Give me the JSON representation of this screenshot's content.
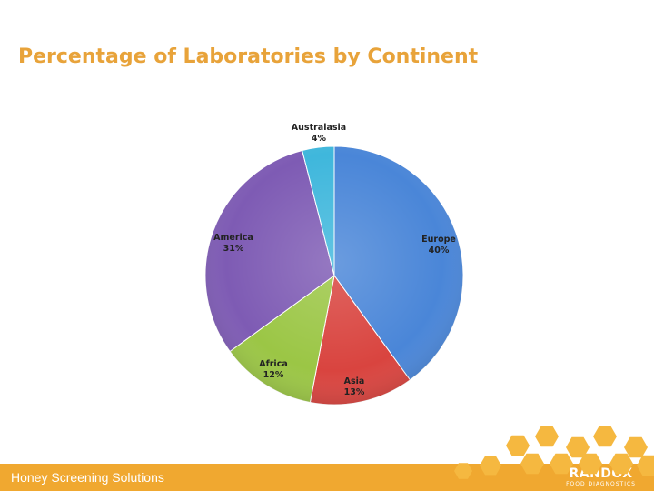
{
  "title": "Percentage of Laboratories by Continent",
  "colors": {
    "title": "#E8A33A",
    "footer": "#F0A830",
    "hex": "#F5B840"
  },
  "footer": {
    "text": "Honey Screening Solutions",
    "logo_main": "RANDOX",
    "logo_sub": "FOOD DIAGNOSTICS"
  },
  "chart_data": {
    "type": "pie",
    "title": "Percentage of Laboratories by Continent",
    "start_angle_deg": 0,
    "direction": "clockwise",
    "slices": [
      {
        "label": "Europe",
        "value": 40,
        "value_label": "40%",
        "color": "#4A86D8"
      },
      {
        "label": "Asia",
        "value": 13,
        "value_label": "13%",
        "color": "#D9443F"
      },
      {
        "label": "Africa",
        "value": 12,
        "value_label": "12%",
        "color": "#9BC645"
      },
      {
        "label": "America",
        "value": 31,
        "value_label": "31%",
        "color": "#7E5BB4"
      },
      {
        "label": "Australasia",
        "value": 4,
        "value_label": "4%",
        "color": "#3FB7DC"
      }
    ]
  }
}
